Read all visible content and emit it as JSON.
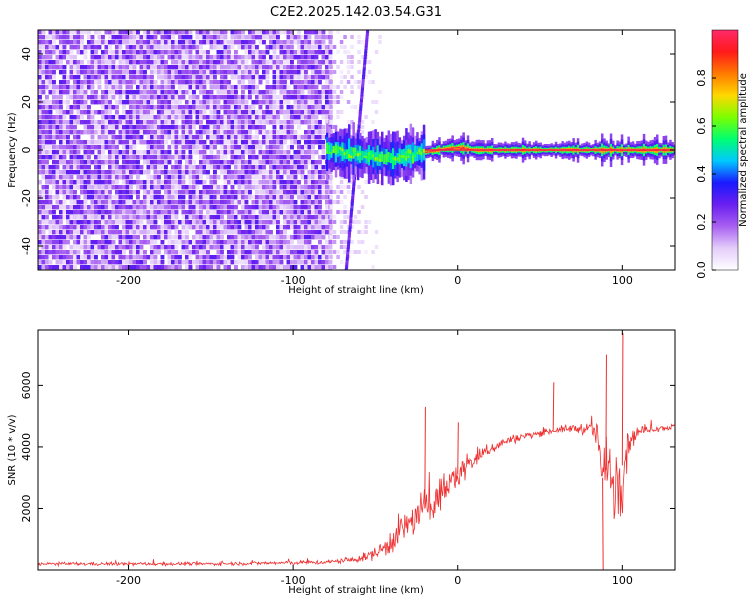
{
  "figure_title": "C2E2.2025.142.03.54.G31",
  "chart_data": [
    {
      "type": "heatmap",
      "title": "C2E2.2025.142.03.54.G31",
      "xlabel": "Height of straight line (km)",
      "ylabel": "Frequency (Hz)",
      "xlim": [
        -255,
        132
      ],
      "ylim": [
        -50,
        50
      ],
      "x_ticks": [
        -200,
        -100,
        0,
        100
      ],
      "y_ticks": [
        -40,
        -20,
        0,
        20,
        40
      ],
      "colorbar": {
        "label": "Normalized spectral amplitude",
        "range": [
          0,
          1
        ],
        "ticks": [
          0.0,
          0.2,
          0.4,
          0.6,
          0.8
        ],
        "stops": [
          "#ffffff",
          "#e4cdfa",
          "#a860f0",
          "#6a1ff0",
          "#1a1aff",
          "#00c8ff",
          "#00ff70",
          "#7cff00",
          "#ffd800",
          "#ff7a00",
          "#ff1a1a",
          "#ff2a6a"
        ]
      },
      "regions": [
        {
          "name": "noise",
          "x_range": [
            -255,
            -78
          ],
          "freq_range": [
            -50,
            50
          ],
          "amplitude_range": [
            0.05,
            0.3
          ]
        },
        {
          "name": "transition",
          "x_range": [
            -78,
            -45
          ],
          "freq_range": [
            -50,
            50
          ],
          "amplitude_range": [
            0.0,
            0.12
          ]
        },
        {
          "name": "carrier",
          "x_range": [
            -80,
            132
          ],
          "center_freq": 0,
          "amplitude": 1.0
        }
      ],
      "drift_line": {
        "x": [
          -68,
          -55
        ],
        "freq": [
          -50,
          50
        ]
      },
      "carrier_wander": {
        "x": [
          -80,
          -70,
          -60,
          -50,
          -40,
          -30,
          -20,
          -10,
          0,
          10,
          130
        ],
        "freq": [
          0,
          -1,
          -2,
          -3,
          -3.5,
          -2,
          -1,
          0.3,
          1,
          0,
          0
        ]
      }
    },
    {
      "type": "line",
      "xlabel": "Height of straight line (km)",
      "ylabel": "SNR (10 * v/v)",
      "xlim": [
        -255,
        132
      ],
      "ylim": [
        0,
        7800
      ],
      "x_ticks": [
        -200,
        -100,
        0,
        100
      ],
      "y_ticks": [
        2000,
        4000,
        6000
      ],
      "color": "#ee3030",
      "envelope": {
        "x": [
          -255,
          -150,
          -80,
          -60,
          -50,
          -45,
          -40,
          -30,
          -20,
          -10,
          0,
          10,
          20,
          30,
          40,
          50,
          60,
          70,
          80,
          85,
          88,
          92,
          95,
          100,
          105,
          110,
          120,
          132
        ],
        "mean": [
          200,
          200,
          250,
          350,
          550,
          700,
          1000,
          1500,
          2000,
          2500,
          3100,
          3600,
          3950,
          4200,
          4350,
          4450,
          4550,
          4600,
          4600,
          4400,
          3000,
          3500,
          2800,
          3400,
          4300,
          4500,
          4600,
          4650
        ],
        "spread": [
          80,
          80,
          100,
          150,
          300,
          500,
          700,
          800,
          900,
          850,
          700,
          500,
          300,
          220,
          180,
          150,
          150,
          200,
          300,
          600,
          1400,
          1800,
          1800,
          2200,
          600,
          200,
          150,
          150
        ]
      },
      "spikes": [
        {
          "x": -20,
          "y": 5300
        },
        {
          "x": 0,
          "y": 4800
        },
        {
          "x": 58,
          "y": 6100
        },
        {
          "x": 90,
          "y": 7000
        },
        {
          "x": 100,
          "y": 7700
        },
        {
          "x": 88,
          "y": 0
        }
      ]
    }
  ]
}
